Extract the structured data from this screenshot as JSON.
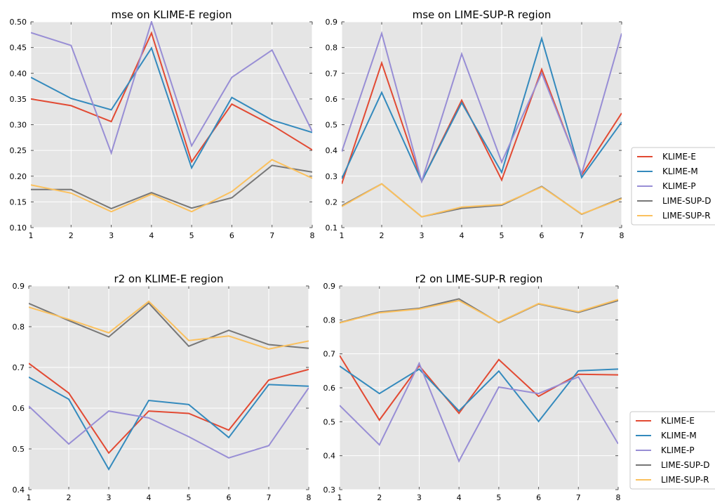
{
  "colors": {
    "KLIME-E": "#E24A33",
    "KLIME-M": "#348ABD",
    "KLIME-P": "#988ED5",
    "LIME-SUP-D": "#777777",
    "LIME-SUP-R": "#FBC15E",
    "axes_background": "#E5E5E5",
    "grid": "#ffffff"
  },
  "chart_data": [
    {
      "type": "line",
      "title": "mse on KLIME-E region",
      "xlabel": "",
      "ylabel": "",
      "x": [
        1,
        2,
        3,
        4,
        5,
        6,
        7,
        8
      ],
      "xlim": [
        1,
        8
      ],
      "ylim": [
        0.1,
        0.5
      ],
      "yticks": [
        "0.10",
        "0.15",
        "0.20",
        "0.25",
        "0.30",
        "0.35",
        "0.40",
        "0.45",
        "0.50"
      ],
      "grid": true,
      "legend": false,
      "series": [
        {
          "name": "KLIME-E",
          "values": [
            0.35,
            0.337,
            0.306,
            0.478,
            0.228,
            0.34,
            0.299,
            0.251
          ]
        },
        {
          "name": "KLIME-M",
          "values": [
            0.392,
            0.351,
            0.329,
            0.449,
            0.216,
            0.353,
            0.309,
            0.285
          ]
        },
        {
          "name": "KLIME-P",
          "values": [
            0.479,
            0.454,
            0.245,
            0.5,
            0.259,
            0.392,
            0.445,
            0.287
          ]
        },
        {
          "name": "LIME-SUP-D",
          "values": [
            0.174,
            0.174,
            0.137,
            0.168,
            0.138,
            0.158,
            0.221,
            0.208
          ]
        },
        {
          "name": "LIME-SUP-R",
          "values": [
            0.183,
            0.167,
            0.131,
            0.165,
            0.131,
            0.17,
            0.232,
            0.196
          ]
        }
      ]
    },
    {
      "type": "line",
      "title": "mse on LIME-SUP-R region",
      "xlabel": "",
      "ylabel": "",
      "x": [
        1,
        2,
        3,
        4,
        5,
        6,
        7,
        8
      ],
      "xlim": [
        1,
        8
      ],
      "ylim": [
        0.1,
        0.9
      ],
      "yticks": [
        "0.1",
        "0.2",
        "0.3",
        "0.4",
        "0.5",
        "0.6",
        "0.7",
        "0.8",
        "0.9"
      ],
      "grid": true,
      "legend": true,
      "series": [
        {
          "name": "KLIME-E",
          "values": [
            0.27,
            0.74,
            0.28,
            0.595,
            0.285,
            0.715,
            0.305,
            0.545
          ]
        },
        {
          "name": "KLIME-M",
          "values": [
            0.29,
            0.625,
            0.28,
            0.585,
            0.315,
            0.835,
            0.295,
            0.51
          ]
        },
        {
          "name": "KLIME-P",
          "values": [
            0.395,
            0.855,
            0.28,
            0.775,
            0.355,
            0.7,
            0.31,
            0.855
          ]
        },
        {
          "name": "LIME-SUP-D",
          "values": [
            0.185,
            0.27,
            0.142,
            0.175,
            0.187,
            0.26,
            0.152,
            0.215
          ]
        },
        {
          "name": "LIME-SUP-R",
          "values": [
            0.182,
            0.27,
            0.142,
            0.18,
            0.19,
            0.258,
            0.153,
            0.212
          ]
        }
      ]
    },
    {
      "type": "line",
      "title": "r2 on KLIME-E region",
      "xlabel": "",
      "ylabel": "",
      "x": [
        1,
        2,
        3,
        4,
        5,
        6,
        7,
        8
      ],
      "xlim": [
        1,
        8
      ],
      "ylim": [
        0.4,
        0.9
      ],
      "yticks": [
        "0.4",
        "0.5",
        "0.6",
        "0.7",
        "0.8",
        "0.9"
      ],
      "grid": true,
      "legend": false,
      "series": [
        {
          "name": "KLIME-E",
          "values": [
            0.71,
            0.637,
            0.49,
            0.593,
            0.587,
            0.546,
            0.669,
            0.695
          ]
        },
        {
          "name": "KLIME-M",
          "values": [
            0.676,
            0.622,
            0.45,
            0.619,
            0.609,
            0.528,
            0.658,
            0.654
          ]
        },
        {
          "name": "KLIME-P",
          "values": [
            0.605,
            0.512,
            0.593,
            0.576,
            0.53,
            0.478,
            0.508,
            0.65
          ]
        },
        {
          "name": "LIME-SUP-D",
          "values": [
            0.857,
            0.815,
            0.775,
            0.858,
            0.752,
            0.791,
            0.756,
            0.747
          ]
        },
        {
          "name": "LIME-SUP-R",
          "values": [
            0.848,
            0.818,
            0.785,
            0.862,
            0.766,
            0.777,
            0.745,
            0.765
          ]
        }
      ]
    },
    {
      "type": "line",
      "title": "r2 on LIME-SUP-R region",
      "xlabel": "",
      "ylabel": "",
      "x": [
        1,
        2,
        3,
        4,
        5,
        6,
        7,
        8
      ],
      "xlim": [
        1,
        8
      ],
      "ylim": [
        0.3,
        0.9
      ],
      "yticks": [
        "0.3",
        "0.4",
        "0.5",
        "0.6",
        "0.7",
        "0.8",
        "0.9"
      ],
      "grid": true,
      "legend": true,
      "series": [
        {
          "name": "KLIME-E",
          "values": [
            0.695,
            0.505,
            0.665,
            0.525,
            0.683,
            0.575,
            0.64,
            0.638
          ]
        },
        {
          "name": "KLIME-M",
          "values": [
            0.664,
            0.583,
            0.655,
            0.532,
            0.649,
            0.501,
            0.65,
            0.655
          ]
        },
        {
          "name": "KLIME-P",
          "values": [
            0.548,
            0.432,
            0.672,
            0.384,
            0.602,
            0.583,
            0.632,
            0.435
          ]
        },
        {
          "name": "LIME-SUP-D",
          "values": [
            0.792,
            0.823,
            0.834,
            0.862,
            0.792,
            0.847,
            0.822,
            0.857
          ]
        },
        {
          "name": "LIME-SUP-R",
          "values": [
            0.791,
            0.821,
            0.832,
            0.857,
            0.793,
            0.848,
            0.824,
            0.86
          ]
        }
      ]
    }
  ]
}
